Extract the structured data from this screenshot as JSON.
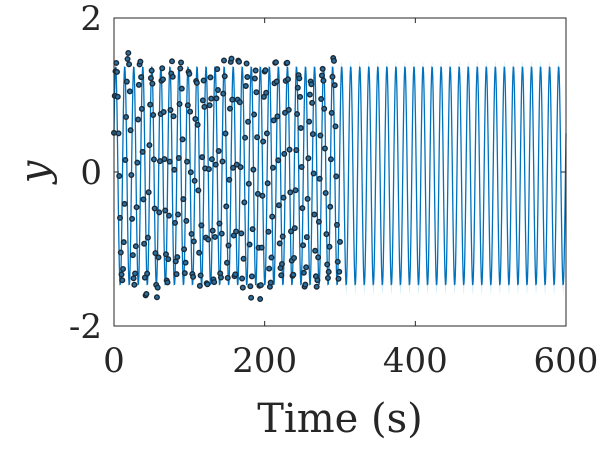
{
  "chart_data": {
    "type": "line",
    "xlabel": "Time (s)",
    "ylabel": "y",
    "xlim": [
      0,
      600
    ],
    "ylim": [
      -2,
      2
    ],
    "xticks": [
      0,
      200,
      400,
      600
    ],
    "xtick_labels": [
      "0",
      "200",
      "400",
      "600"
    ],
    "yticks": [
      -2,
      0,
      2
    ],
    "ytick_labels": [
      "-2",
      "0",
      "2"
    ],
    "grid": false,
    "box": true,
    "series": [
      {
        "kind": "observed-markers",
        "marker_color": "#1b2a36",
        "x_range": [
          0,
          300
        ],
        "sample_step": 1.0,
        "amplitude_range": [
          1.35,
          1.5
        ],
        "period_range": [
          9,
          16
        ]
      },
      {
        "kind": "line",
        "color": "#0072bd",
        "x_range": [
          0,
          600
        ],
        "period": 12.0,
        "amplitude": 1.42,
        "offset": -0.05
      },
      {
        "kind": "confidence-band",
        "color": "#9ed8f2",
        "x_range": [
          300,
          600
        ],
        "half_width": 0.08
      }
    ]
  }
}
